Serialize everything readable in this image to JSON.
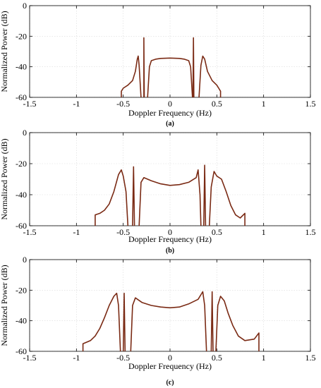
{
  "colors": {
    "curve": "#7a2a14",
    "grid": "#d9d9d9",
    "axis": "#000000"
  },
  "chart_data": [
    {
      "type": "line",
      "panel_label": "(a)",
      "xlabel": "Doppler Frequency (Hz)",
      "ylabel": "Normalized Power (dB)",
      "xlim": [
        -1.5,
        1.5
      ],
      "ylim": [
        -60,
        0
      ],
      "xticks": [
        "-1.5",
        "-1",
        "-0.5",
        "0",
        "0.5",
        "1",
        "1.5"
      ],
      "yticks": [
        "0",
        "-20",
        "-40",
        "-60"
      ],
      "grid": true,
      "series": [
        {
          "segments": [
            [
              [
                -0.52,
                -60
              ],
              [
                -0.52,
                -56
              ],
              [
                -0.5,
                -54
              ],
              [
                -0.45,
                -52
              ],
              [
                -0.4,
                -49
              ],
              [
                -0.37,
                -43
              ],
              [
                -0.35,
                -35
              ],
              [
                -0.34,
                -33
              ],
              [
                -0.33,
                -39
              ],
              [
                -0.31,
                -60
              ]
            ],
            [
              [
                -0.28,
                -60
              ],
              [
                -0.28,
                -21
              ],
              [
                -0.275,
                -60
              ]
            ],
            [
              [
                -0.24,
                -60
              ],
              [
                -0.22,
                -40
              ],
              [
                -0.2,
                -36
              ],
              [
                -0.15,
                -35
              ],
              [
                -0.1,
                -34.5
              ],
              [
                0,
                -34.3
              ],
              [
                0.1,
                -34.5
              ],
              [
                0.15,
                -35
              ],
              [
                0.2,
                -36
              ],
              [
                0.22,
                -40
              ],
              [
                0.24,
                -60
              ]
            ],
            [
              [
                0.245,
                -60
              ],
              [
                0.25,
                -21
              ],
              [
                0.255,
                -60
              ]
            ],
            [
              [
                0.31,
                -60
              ],
              [
                0.33,
                -39
              ],
              [
                0.35,
                -33
              ],
              [
                0.37,
                -35
              ],
              [
                0.4,
                -43
              ],
              [
                0.45,
                -49
              ],
              [
                0.5,
                -52
              ],
              [
                0.52,
                -54
              ],
              [
                0.54,
                -56
              ],
              [
                0.54,
                -60
              ]
            ]
          ]
        }
      ]
    },
    {
      "type": "line",
      "panel_label": "(b)",
      "xlabel": "Doppler Frequency (Hz)",
      "ylabel": "Normalized Power (dB)",
      "xlim": [
        -1.5,
        1.5
      ],
      "ylim": [
        -60,
        0
      ],
      "xticks": [
        "-1.5",
        "-1",
        "-0.5",
        "0",
        "0.5",
        "1",
        "1.5"
      ],
      "yticks": [
        "0",
        "-20",
        "-40",
        "-60"
      ],
      "grid": true,
      "series": [
        {
          "segments": [
            [
              [
                -0.8,
                -60
              ],
              [
                -0.8,
                -53
              ],
              [
                -0.75,
                -52
              ],
              [
                -0.7,
                -50
              ],
              [
                -0.65,
                -46
              ],
              [
                -0.6,
                -38
              ],
              [
                -0.55,
                -27
              ],
              [
                -0.52,
                -24
              ],
              [
                -0.5,
                -28
              ],
              [
                -0.47,
                -38
              ],
              [
                -0.45,
                -60
              ]
            ],
            [
              [
                -0.4,
                -60
              ],
              [
                -0.39,
                -22
              ],
              [
                -0.38,
                -60
              ]
            ],
            [
              [
                -0.33,
                -60
              ],
              [
                -0.31,
                -32
              ],
              [
                -0.28,
                -29
              ],
              [
                -0.2,
                -31
              ],
              [
                -0.1,
                -33
              ],
              [
                0,
                -34
              ],
              [
                0.1,
                -33.5
              ],
              [
                0.2,
                -32
              ],
              [
                0.28,
                -29
              ],
              [
                0.3,
                -24
              ],
              [
                0.32,
                -40
              ],
              [
                0.33,
                -60
              ]
            ],
            [
              [
                0.36,
                -60
              ],
              [
                0.37,
                -21
              ],
              [
                0.38,
                -60
              ]
            ],
            [
              [
                0.42,
                -60
              ],
              [
                0.44,
                -35
              ],
              [
                0.47,
                -25
              ],
              [
                0.5,
                -28
              ],
              [
                0.55,
                -30
              ],
              [
                0.6,
                -38
              ],
              [
                0.65,
                -47
              ],
              [
                0.7,
                -53
              ],
              [
                0.75,
                -55
              ],
              [
                0.8,
                -52
              ],
              [
                0.8,
                -60
              ]
            ]
          ]
        }
      ]
    },
    {
      "type": "line",
      "panel_label": "(c)",
      "xlabel": "Doppler Frequency (Hz)",
      "ylabel": "Normalized Power (dB)",
      "xlim": [
        -1.5,
        1.5
      ],
      "ylim": [
        -60,
        0
      ],
      "xticks": [
        "-1.5",
        "-1",
        "-0.5",
        "0",
        "0.5",
        "1",
        "1.5"
      ],
      "yticks": [
        "0",
        "-20",
        "-40",
        "-60"
      ],
      "grid": true,
      "series": [
        {
          "segments": [
            [
              [
                -0.93,
                -60
              ],
              [
                -0.93,
                -55
              ],
              [
                -0.85,
                -53
              ],
              [
                -0.8,
                -50
              ],
              [
                -0.75,
                -45
              ],
              [
                -0.7,
                -38
              ],
              [
                -0.65,
                -30
              ],
              [
                -0.6,
                -24
              ],
              [
                -0.57,
                -22
              ],
              [
                -0.55,
                -30
              ],
              [
                -0.53,
                -60
              ]
            ],
            [
              [
                -0.5,
                -60
              ],
              [
                -0.49,
                -22
              ],
              [
                -0.48,
                -60
              ]
            ],
            [
              [
                -0.42,
                -60
              ],
              [
                -0.4,
                -30
              ],
              [
                -0.37,
                -25
              ],
              [
                -0.3,
                -28
              ],
              [
                -0.2,
                -30
              ],
              [
                -0.1,
                -31
              ],
              [
                0,
                -31.5
              ],
              [
                0.1,
                -31
              ],
              [
                0.2,
                -29
              ],
              [
                0.3,
                -26
              ],
              [
                0.35,
                -21
              ],
              [
                0.37,
                -30
              ],
              [
                0.39,
                -60
              ]
            ],
            [
              [
                0.44,
                -60
              ],
              [
                0.45,
                -21
              ],
              [
                0.46,
                -60
              ]
            ],
            [
              [
                0.49,
                -60
              ],
              [
                0.51,
                -30
              ],
              [
                0.54,
                -24
              ],
              [
                0.58,
                -27
              ],
              [
                0.62,
                -35
              ],
              [
                0.67,
                -43
              ],
              [
                0.73,
                -50
              ],
              [
                0.8,
                -53
              ],
              [
                0.9,
                -52
              ],
              [
                0.95,
                -48
              ],
              [
                0.95,
                -60
              ]
            ]
          ]
        }
      ]
    }
  ]
}
